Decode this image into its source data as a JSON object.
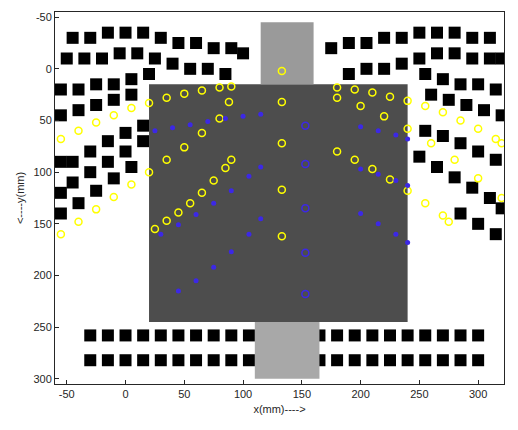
{
  "chart_data": {
    "type": "scatter",
    "xlabel": "x(mm)---->",
    "ylabel": "<----y(mm)",
    "xlim": [
      -60,
      322
    ],
    "ylim": [
      305,
      -55
    ],
    "xticks": [
      -50,
      0,
      50,
      100,
      150,
      200,
      250,
      300
    ],
    "yticks": [
      -50,
      0,
      50,
      100,
      150,
      200,
      250,
      300
    ],
    "grid": false,
    "background_regions": [
      {
        "x": [
          20,
          240
        ],
        "y": [
          15,
          245
        ],
        "color": "#4d4d4d"
      },
      {
        "x": [
          115,
          160
        ],
        "y": [
          -45,
          15
        ],
        "color": "#9a9a9a"
      },
      {
        "x": [
          110,
          165
        ],
        "y": [
          245,
          300
        ],
        "color": "#a8a8a8"
      }
    ],
    "series": [
      {
        "color": "#000000",
        "marker": "square",
        "x": [
          -45,
          -30,
          -15,
          0,
          15,
          30,
          45,
          60,
          75,
          90,
          100,
          -50,
          -35,
          -20,
          -5,
          10,
          25,
          40,
          55,
          70,
          85,
          -55,
          -40,
          -25,
          -10,
          5,
          20,
          -55,
          -40,
          -25,
          -10,
          5,
          -55,
          -45,
          -30,
          -15,
          0,
          15,
          -55,
          -45,
          -30,
          -15,
          0,
          15,
          -55,
          -40,
          -25,
          -10,
          5,
          175,
          190,
          205,
          220,
          235,
          250,
          265,
          280,
          295,
          310,
          190,
          205,
          220,
          235,
          250,
          265,
          280,
          295,
          310,
          320,
          255,
          270,
          285,
          300,
          315,
          260,
          275,
          290,
          305,
          320,
          255,
          270,
          285,
          300,
          315,
          250,
          265,
          280,
          295,
          310,
          320,
          285,
          300,
          315,
          -30,
          -15,
          0,
          15,
          30,
          45,
          60,
          75,
          90,
          105,
          120,
          135,
          150,
          165,
          180,
          195,
          210,
          225,
          240,
          255,
          270,
          285,
          300,
          -30,
          -15,
          0,
          15,
          30,
          45,
          60,
          75,
          90,
          105,
          120,
          135,
          150,
          165,
          180,
          195,
          210,
          225,
          240,
          255,
          270,
          285,
          300
        ],
        "y": [
          -30,
          -30,
          -35,
          -35,
          -35,
          -30,
          -25,
          -25,
          -20,
          -20,
          -15,
          -10,
          -10,
          -10,
          -15,
          -15,
          -10,
          -5,
          0,
          0,
          5,
          20,
          20,
          15,
          15,
          10,
          5,
          45,
          40,
          35,
          30,
          25,
          90,
          90,
          80,
          70,
          62,
          55,
          120,
          110,
          100,
          90,
          80,
          70,
          140,
          130,
          118,
          106,
          95,
          -20,
          -25,
          -25,
          -30,
          -30,
          -35,
          -35,
          -35,
          -30,
          -30,
          5,
          0,
          0,
          -5,
          -10,
          -15,
          -15,
          -10,
          -10,
          -10,
          5,
          10,
          15,
          15,
          20,
          25,
          30,
          35,
          40,
          45,
          60,
          65,
          72,
          80,
          88,
          85,
          95,
          105,
          115,
          125,
          135,
          140,
          150,
          160,
          258,
          258,
          258,
          258,
          258,
          258,
          258,
          258,
          258,
          258,
          258,
          258,
          258,
          258,
          258,
          258,
          258,
          258,
          258,
          258,
          258,
          258,
          258,
          282,
          282,
          282,
          282,
          282,
          282,
          282,
          282,
          282,
          282,
          282,
          282,
          282,
          282,
          282,
          282,
          282,
          282,
          282,
          282,
          282,
          282,
          282
        ]
      },
      {
        "color": "#ffff00",
        "marker": "circle-open",
        "x": [
          -55,
          -40,
          -25,
          -10,
          5,
          20,
          35,
          50,
          65,
          80,
          90
        ],
        "y": [
          68,
          60,
          52,
          45,
          38,
          33,
          28,
          24,
          21,
          18,
          17
        ]
      },
      {
        "color": "#ffff00",
        "marker": "circle-open",
        "x": [
          -55,
          -40,
          -25,
          -10,
          5,
          20,
          35,
          50,
          65,
          80,
          88
        ],
        "y": [
          160,
          148,
          136,
          124,
          112,
          100,
          88,
          76,
          62,
          48,
          32
        ]
      },
      {
        "color": "#ffff00",
        "marker": "circle-open",
        "x": [
          25,
          35,
          45,
          55,
          65,
          75,
          85,
          90
        ],
        "y": [
          155,
          147,
          139,
          130,
          120,
          108,
          96,
          88
        ]
      },
      {
        "color": "#ffff00",
        "marker": "circle-open",
        "x": [
          180,
          195,
          210,
          225,
          240,
          255,
          270,
          285,
          300,
          315,
          320
        ],
        "y": [
          18,
          20,
          23,
          27,
          31,
          36,
          42,
          50,
          58,
          68,
          72
        ]
      },
      {
        "color": "#ffff00",
        "marker": "circle-open",
        "x": [
          180,
          200,
          220,
          240,
          260,
          280,
          300,
          320
        ],
        "y": [
          28,
          36,
          46,
          58,
          72,
          88,
          106,
          125
        ]
      },
      {
        "color": "#ffff00",
        "marker": "circle-open",
        "x": [
          180,
          195,
          210,
          225,
          240,
          255,
          270,
          275
        ],
        "y": [
          80,
          88,
          97,
          107,
          118,
          130,
          142,
          148
        ]
      },
      {
        "color": "#3c28e6",
        "marker": "circle",
        "x": [
          25,
          40,
          55,
          70,
          85,
          100,
          115
        ],
        "y": [
          60,
          57,
          54,
          51,
          48,
          46,
          44
        ]
      },
      {
        "color": "#3c28e6",
        "marker": "circle",
        "x": [
          30,
          45,
          60,
          75,
          90,
          105,
          115
        ],
        "y": [
          160,
          151,
          141,
          130,
          118,
          104,
          95
        ]
      },
      {
        "color": "#3c28e6",
        "marker": "circle",
        "x": [
          45,
          60,
          75,
          90,
          105,
          115
        ],
        "y": [
          215,
          205,
          192,
          177,
          160,
          145
        ]
      },
      {
        "color": "#3c28e6",
        "marker": "circle",
        "x": [
          200,
          215,
          230,
          240
        ],
        "y": [
          56,
          60,
          64,
          68
        ]
      },
      {
        "color": "#3c28e6",
        "marker": "circle",
        "x": [
          200,
          215,
          230,
          240
        ],
        "y": [
          97,
          102,
          108,
          113
        ]
      },
      {
        "color": "#3c28e6",
        "marker": "circle",
        "x": [
          200,
          215,
          230,
          240
        ],
        "y": [
          140,
          150,
          160,
          168
        ]
      },
      {
        "color": "#ffff00",
        "marker": "circle-open",
        "x": [
          133,
          133,
          133,
          133,
          133
        ],
        "y": [
          2,
          32,
          72,
          117,
          162
        ]
      },
      {
        "color": "#3c28e6",
        "marker": "circle-open",
        "x": [
          153,
          153,
          153,
          153,
          153
        ],
        "y": [
          55,
          92,
          135,
          178,
          218
        ]
      }
    ]
  }
}
